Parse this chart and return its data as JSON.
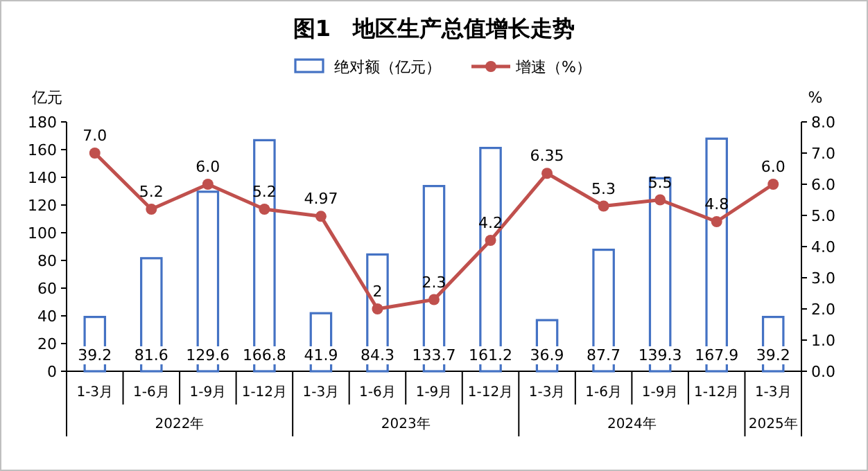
{
  "chart_data": {
    "type": "bar",
    "title": "图1　地区生产总值增长走势",
    "ylabel": "亿元",
    "y2label": "%",
    "categories": [
      "1-3月",
      "1-6月",
      "1-9月",
      "1-12月",
      "1-3月",
      "1-6月",
      "1-9月",
      "1-12月",
      "1-3月",
      "1-6月",
      "1-9月",
      "1-12月",
      "1-3月"
    ],
    "annotations": [
      "2022年",
      "2023年",
      "2024年",
      "2025年"
    ],
    "ylim": [
      0,
      180
    ],
    "yticks": [
      0,
      20,
      40,
      60,
      80,
      100,
      120,
      140,
      160,
      180
    ],
    "y2lim": [
      0,
      8
    ],
    "y2ticks": [
      {
        "value": 0,
        "label": "0.0"
      },
      {
        "value": 1,
        "label": "1.0"
      },
      {
        "value": 2,
        "label": "2.0"
      },
      {
        "value": 3,
        "label": "3.0"
      },
      {
        "value": 4,
        "label": "4.0"
      },
      {
        "value": 5,
        "label": "5.0"
      },
      {
        "value": 6,
        "label": "6.0"
      },
      {
        "value": 7,
        "label": "7.0"
      },
      {
        "value": 8,
        "label": "8.0"
      }
    ],
    "legend": "top",
    "grid": false,
    "series": [
      {
        "name": "绝对额（亿元）",
        "color": "#4472c4",
        "values": [
          39.2,
          81.6,
          129.6,
          166.8,
          41.9,
          84.3,
          133.7,
          161.2,
          36.9,
          87.7,
          139.3,
          167.9,
          39.2
        ],
        "value_labels": [
          "39.2",
          "81.6",
          "129.6",
          "166.8",
          "41.9",
          "84.3",
          "133.7",
          "161.2",
          "36.9",
          "87.7",
          "139.3",
          "167.9",
          "39.2"
        ]
      },
      {
        "name": "增速（%）",
        "type": "line",
        "axis": "y2",
        "color": "#c0504d",
        "marker": "circle",
        "values": [
          7.0,
          5.2,
          6.0,
          5.2,
          4.97,
          2,
          2.3,
          4.2,
          6.35,
          5.3,
          5.5,
          4.8,
          6.0
        ],
        "value_labels": [
          "7.0",
          "5.2",
          "6.0",
          "5.2",
          "4.97",
          "2",
          "2.3",
          "4.2",
          "6.35",
          "5.3",
          "5.5",
          "4.8",
          "6.0"
        ]
      }
    ]
  }
}
